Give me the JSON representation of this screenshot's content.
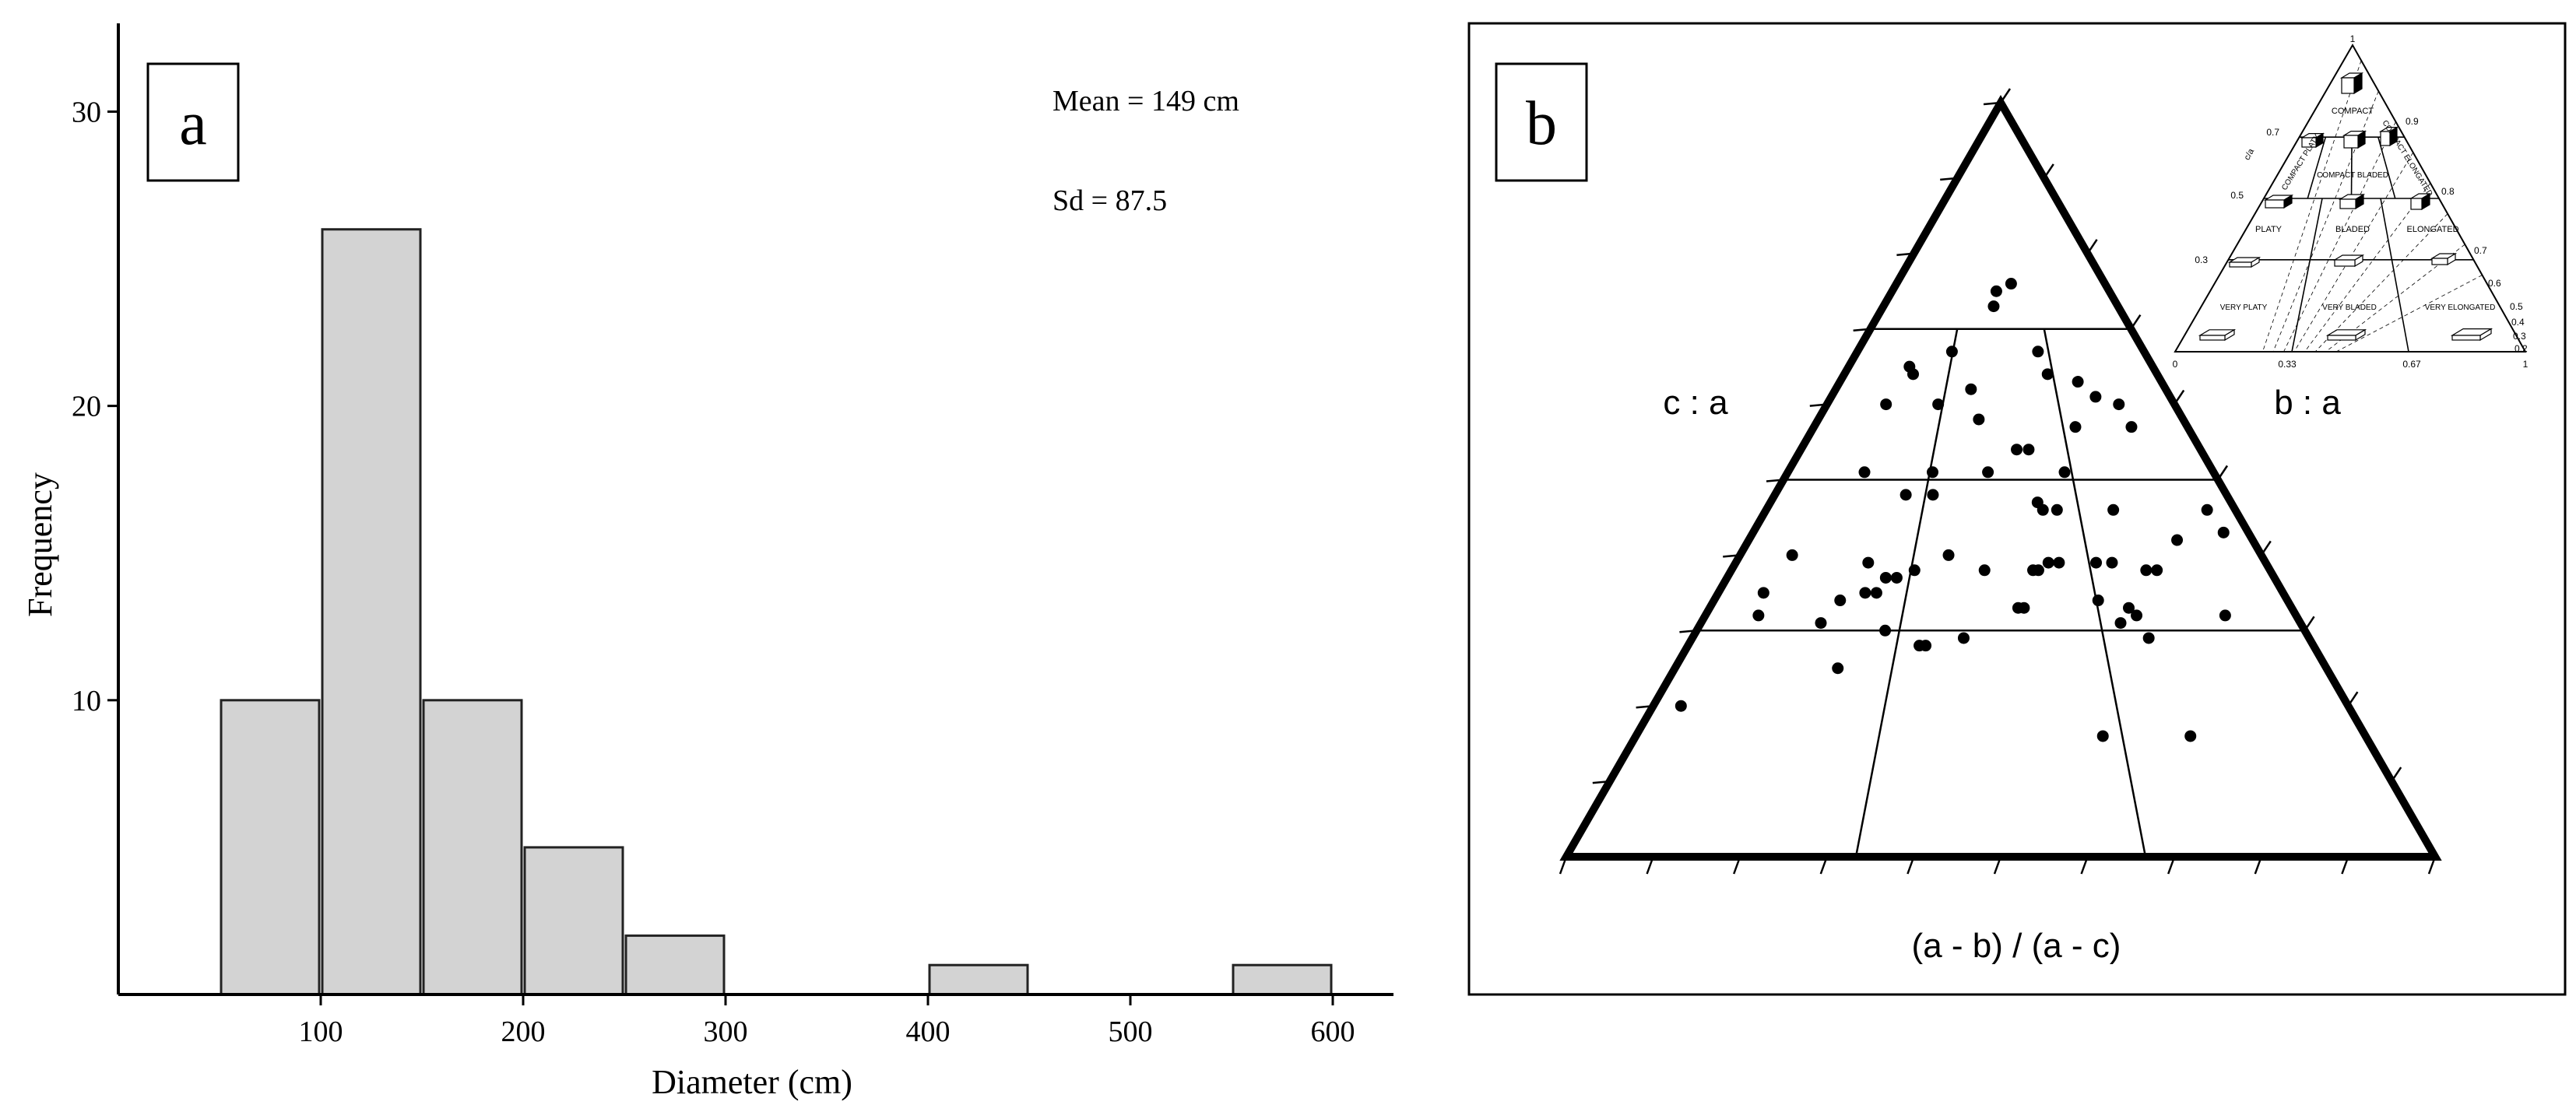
{
  "panel_a": {
    "label": "a",
    "stats": {
      "mean": "Mean = 149 cm",
      "sd": "Sd = 87.5"
    }
  },
  "panel_b": {
    "label": "b",
    "left_label": "c : a",
    "right_label": "b : a",
    "bottom_label": "(a - b) / (a - c)",
    "inset": {
      "apex_label": "1",
      "classes": [
        "COMPACT",
        "COMPACT PLATY",
        "COMPACT BLADED",
        "COMPACT ELONGATED",
        "PLATY",
        "BLADED",
        "ELONGATED",
        "VERY PLATY",
        "VERY BLADED",
        "VERY ELONGATED"
      ],
      "left_axis_label": "c/a",
      "left_ticks": [
        "0.7",
        "0.5",
        "0.3"
      ],
      "right_ticks": [
        "0.9",
        "0.8",
        "0.7",
        "0.6",
        "0.5",
        "0.4",
        "0.3",
        "0.2"
      ],
      "bottom_ticks": [
        "0",
        "0.33",
        "0.67",
        "1"
      ]
    }
  },
  "chart_data": [
    {
      "type": "bar",
      "subtype": "histogram",
      "xlabel": "Diameter (cm)",
      "ylabel": "Frequency",
      "bins": [
        {
          "start": 50,
          "end": 100,
          "count": 10
        },
        {
          "start": 100,
          "end": 150,
          "count": 26
        },
        {
          "start": 150,
          "end": 200,
          "count": 10
        },
        {
          "start": 200,
          "end": 250,
          "count": 5
        },
        {
          "start": 250,
          "end": 300,
          "count": 2
        },
        {
          "start": 400,
          "end": 450,
          "count": 1
        },
        {
          "start": 550,
          "end": 600,
          "count": 1
        }
      ],
      "xlim": [
        0,
        630
      ],
      "ylim": [
        0,
        33
      ],
      "xticks": [
        100,
        200,
        300,
        400,
        500,
        600
      ],
      "yticks": [
        10,
        20,
        30
      ],
      "bar_color": "#d3d3d3",
      "grid": false
    },
    {
      "type": "scatter",
      "subtype": "ternary",
      "note_points": "coordinates are (a-b)/(a-c) and c:a",
      "horizontal_lines_ca": [
        0.7,
        0.5,
        0.3
      ],
      "points": [
        [
          0.48,
          0.75
        ],
        [
          0.63,
          0.67
        ],
        [
          0.33,
          0.67
        ],
        [
          0.55,
          0.76
        ],
        [
          0.65,
          0.64
        ],
        [
          0.47,
          0.73
        ],
        [
          0.2,
          0.65
        ],
        [
          0.22,
          0.64
        ],
        [
          0.32,
          0.6
        ],
        [
          0.41,
          0.62
        ],
        [
          0.74,
          0.63
        ],
        [
          0.78,
          0.61
        ],
        [
          0.84,
          0.6
        ],
        [
          0.44,
          0.58
        ],
        [
          0.7,
          0.57
        ],
        [
          0.85,
          0.57
        ],
        [
          0.54,
          0.54
        ],
        [
          0.57,
          0.54
        ],
        [
          0.65,
          0.51
        ],
        [
          0.18,
          0.51
        ],
        [
          0.34,
          0.51
        ],
        [
          0.47,
          0.51
        ],
        [
          0.29,
          0.48
        ],
        [
          0.35,
          0.48
        ],
        [
          0.58,
          0.47
        ],
        [
          0.59,
          0.46
        ],
        [
          0.62,
          0.46
        ],
        [
          0.74,
          0.46
        ],
        [
          0.94,
          0.46
        ],
        [
          0.95,
          0.43
        ],
        [
          0.1,
          0.4
        ],
        [
          0.25,
          0.39
        ],
        [
          0.29,
          0.37
        ],
        [
          0.31,
          0.37
        ],
        [
          0.34,
          0.38
        ],
        [
          0.4,
          0.4
        ],
        [
          0.47,
          0.38
        ],
        [
          0.56,
          0.38
        ],
        [
          0.57,
          0.38
        ],
        [
          0.59,
          0.39
        ],
        [
          0.61,
          0.39
        ],
        [
          0.68,
          0.39
        ],
        [
          0.71,
          0.39
        ],
        [
          0.77,
          0.38
        ],
        [
          0.79,
          0.38
        ],
        [
          0.08,
          0.35
        ],
        [
          0.22,
          0.34
        ],
        [
          0.26,
          0.35
        ],
        [
          0.28,
          0.35
        ],
        [
          0.53,
          0.33
        ],
        [
          0.54,
          0.33
        ],
        [
          0.67,
          0.34
        ],
        [
          0.73,
          0.32
        ],
        [
          0.72,
          0.33
        ],
        [
          0.09,
          0.32
        ],
        [
          0.2,
          0.31
        ],
        [
          0.31,
          0.3
        ],
        [
          0.37,
          0.28
        ],
        [
          0.38,
          0.28
        ],
        [
          0.44,
          0.29
        ],
        [
          0.7,
          0.31
        ],
        [
          0.74,
          0.29
        ],
        [
          0.88,
          0.32
        ],
        [
          0.25,
          0.25
        ],
        [
          0.04,
          0.2
        ],
        [
          0.76,
          0.16
        ],
        [
          0.64,
          0.16
        ],
        [
          0.17,
          0.6
        ],
        [
          0.85,
          0.42
        ]
      ],
      "grid": false
    }
  ]
}
